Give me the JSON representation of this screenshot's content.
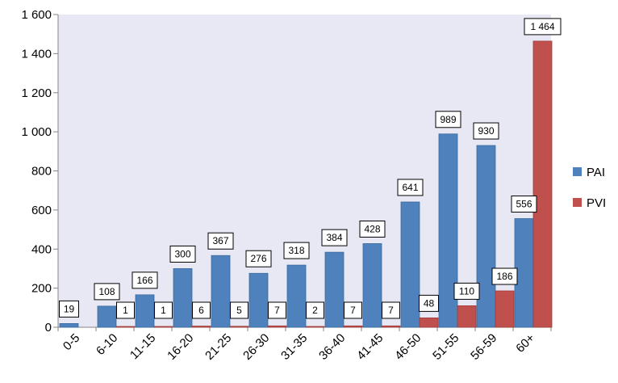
{
  "chart_data": {
    "type": "bar",
    "categories": [
      "0-5",
      "6-10",
      "11-15",
      "16-20",
      "21-25",
      "26-30",
      "31-35",
      "36-40",
      "41-45",
      "46-50",
      "51-55",
      "56-59",
      "60+"
    ],
    "series": [
      {
        "name": "PAI",
        "color": "#4f81bd",
        "values": [
          19,
          108,
          166,
          300,
          367,
          276,
          318,
          384,
          428,
          641,
          989,
          930,
          556
        ],
        "labels": [
          "19",
          "108",
          "166",
          "300",
          "367",
          "276",
          "318",
          "384",
          "428",
          "641",
          "989",
          "930",
          "556"
        ]
      },
      {
        "name": "PVI",
        "color": "#c0504d",
        "values": [
          0,
          1,
          1,
          6,
          5,
          7,
          2,
          7,
          7,
          48,
          110,
          186,
          1464
        ],
        "labels": [
          "",
          "1",
          "1",
          "6",
          "5",
          "7",
          "2",
          "7",
          "7",
          "48",
          "110",
          "186",
          "1 464"
        ]
      }
    ],
    "yticks": [
      0,
      200,
      400,
      600,
      800,
      1000,
      1200,
      1400,
      1600
    ],
    "ytick_labels": [
      "0",
      "200",
      "400",
      "600",
      "800",
      "1 000",
      "1 200",
      "1 400",
      "1 600"
    ],
    "ylim": [
      0,
      1600
    ],
    "title": "",
    "xlabel": "",
    "ylabel": "",
    "grid": false,
    "legend_position": "right",
    "plot_background": "#e8e8f4"
  }
}
